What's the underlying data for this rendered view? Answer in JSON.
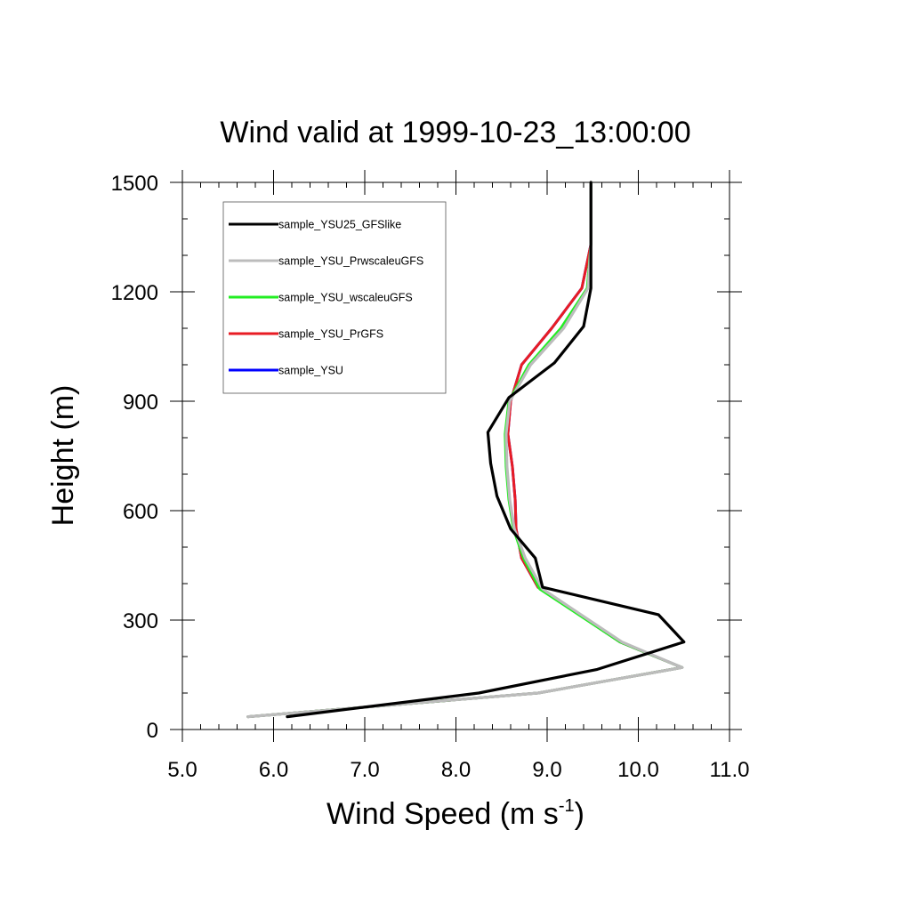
{
  "chart_data": {
    "type": "line",
    "title": "Wind valid at 1999-10-23_13:00:00",
    "xlabel": {
      "base": "Wind Speed (m s",
      "superscript": "-1",
      "suffix": ")"
    },
    "ylabel": "Height (m)",
    "xlim": [
      5.0,
      11.0
    ],
    "ylim": [
      0,
      1500
    ],
    "xticks": [
      {
        "value": 5.0,
        "label": "5.0"
      },
      {
        "value": 6.0,
        "label": "6.0"
      },
      {
        "value": 7.0,
        "label": "7.0"
      },
      {
        "value": 8.0,
        "label": "8.0"
      },
      {
        "value": 9.0,
        "label": "9.0"
      },
      {
        "value": 10.0,
        "label": "10.0"
      },
      {
        "value": 11.0,
        "label": "11.0"
      }
    ],
    "yticks": [
      {
        "value": 0,
        "label": "0"
      },
      {
        "value": 300,
        "label": "300"
      },
      {
        "value": 600,
        "label": "600"
      },
      {
        "value": 900,
        "label": "900"
      },
      {
        "value": 1200,
        "label": "1200"
      },
      {
        "value": 1500,
        "label": "1500"
      }
    ],
    "x_minor_step": 0.2,
    "y_minor_step": 100,
    "grid": false,
    "legend_position": "top-left",
    "series": [
      {
        "name": "sample_YSU",
        "color": "#0000ff",
        "x": [
          5.72,
          8.9,
          10.48,
          9.8,
          8.9,
          8.72,
          8.66,
          8.65,
          8.62,
          8.57,
          8.6,
          8.72,
          9.05,
          9.38,
          9.48,
          9.48
        ],
        "y": [
          35,
          100,
          170,
          240,
          390,
          470,
          550,
          630,
          720,
          810,
          900,
          1000,
          1100,
          1210,
          1330,
          1500
        ]
      },
      {
        "name": "sample_YSU_PrGFS",
        "color": "#e81c24",
        "x": [
          5.72,
          8.9,
          10.48,
          9.8,
          8.9,
          8.72,
          8.66,
          8.65,
          8.62,
          8.57,
          8.6,
          8.72,
          9.05,
          9.38,
          9.48,
          9.48
        ],
        "y": [
          35,
          100,
          170,
          240,
          390,
          470,
          550,
          630,
          720,
          810,
          900,
          1000,
          1100,
          1210,
          1330,
          1500
        ]
      },
      {
        "name": "sample_YSU_wscaleuGFS",
        "color": "#22ee22",
        "x": [
          5.72,
          8.9,
          10.48,
          9.8,
          8.92,
          8.74,
          8.63,
          8.58,
          8.55,
          8.54,
          8.58,
          8.8,
          9.15,
          9.44,
          9.48,
          9.48
        ],
        "y": [
          35,
          100,
          170,
          240,
          385,
          470,
          550,
          630,
          720,
          810,
          900,
          1000,
          1100,
          1210,
          1330,
          1500
        ]
      },
      {
        "name": "sample_YSU_PrwscaleuGFS",
        "color": "#bcbcbc",
        "x": [
          5.72,
          8.9,
          10.48,
          9.82,
          8.95,
          8.76,
          8.64,
          8.59,
          8.56,
          8.55,
          8.59,
          8.82,
          9.18,
          9.45,
          9.48,
          9.48
        ],
        "y": [
          35,
          100,
          170,
          240,
          385,
          470,
          550,
          630,
          720,
          810,
          900,
          1000,
          1100,
          1210,
          1330,
          1500
        ]
      },
      {
        "name": "sample_YSU25_GFSlike",
        "color": "#000000",
        "x": [
          6.15,
          8.25,
          9.55,
          10.5,
          10.22,
          8.95,
          8.87,
          8.6,
          8.45,
          8.38,
          8.35,
          8.58,
          9.08,
          9.4,
          9.48,
          9.48,
          9.48
        ],
        "y": [
          35,
          100,
          165,
          240,
          315,
          390,
          470,
          550,
          640,
          730,
          815,
          910,
          1005,
          1105,
          1210,
          1330,
          1500
        ]
      }
    ],
    "legend_order": [
      "sample_YSU25_GFSlike",
      "sample_YSU_PrwscaleuGFS",
      "sample_YSU_wscaleuGFS",
      "sample_YSU_PrGFS",
      "sample_YSU"
    ]
  }
}
